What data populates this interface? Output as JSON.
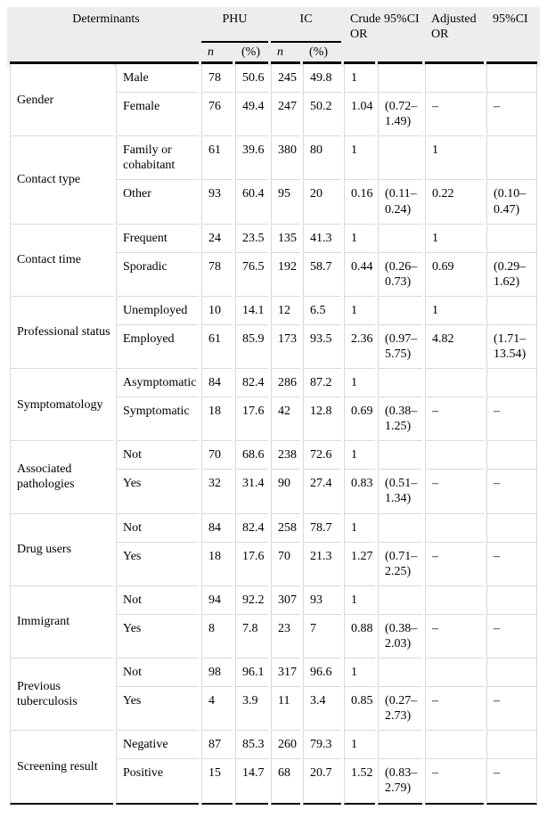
{
  "colors": {
    "header_bg": "#ededed",
    "grid_line": "#d9d9d9",
    "rule_line": "#000000"
  },
  "table": {
    "header": {
      "determinants": "Determinants",
      "phu": "PHU",
      "ic": "IC",
      "crude_or": "Crude OR",
      "ci_crude": "95%CI",
      "adjusted_or": "Adjusted OR",
      "ci_adjusted": "95%CI",
      "n_phu": "n",
      "pct_phu": "(%)",
      "n_ic": "n",
      "pct_ic": "(%)"
    },
    "groups": [
      {
        "name": "Gender",
        "rows": [
          {
            "category": "Male",
            "phu_n": "78",
            "phu_pct": "50.6",
            "ic_n": "245",
            "ic_pct": "49.8",
            "crude_or": "1",
            "crude_ci": "",
            "adj_or": "",
            "adj_ci": ""
          },
          {
            "category": "Female",
            "phu_n": "76",
            "phu_pct": "49.4",
            "ic_n": "247",
            "ic_pct": "50.2",
            "crude_or": "1.04",
            "crude_ci": "(0.72–1.49)",
            "adj_or": "–",
            "adj_ci": "–"
          }
        ]
      },
      {
        "name": "Contact type",
        "rows": [
          {
            "category": "Family or cohabitant",
            "phu_n": "61",
            "phu_pct": "39.6",
            "ic_n": "380",
            "ic_pct": "80",
            "crude_or": "1",
            "crude_ci": "",
            "adj_or": "1",
            "adj_ci": ""
          },
          {
            "category": "Other",
            "phu_n": "93",
            "phu_pct": "60.4",
            "ic_n": "95",
            "ic_pct": "20",
            "crude_or": "0.16",
            "crude_ci": "(0.11–0.24)",
            "adj_or": "0.22",
            "adj_ci": "(0.10–0.47)"
          }
        ]
      },
      {
        "name": "Contact time",
        "rows": [
          {
            "category": "Frequent",
            "phu_n": "24",
            "phu_pct": "23.5",
            "ic_n": "135",
            "ic_pct": "41.3",
            "crude_or": "1",
            "crude_ci": "",
            "adj_or": "1",
            "adj_ci": ""
          },
          {
            "category": "Sporadic",
            "phu_n": "78",
            "phu_pct": "76.5",
            "ic_n": "192",
            "ic_pct": "58.7",
            "crude_or": "0.44",
            "crude_ci": "(0.26–0.73)",
            "adj_or": "0.69",
            "adj_ci": "(0.29–1.62)"
          }
        ]
      },
      {
        "name": "Professional status",
        "rows": [
          {
            "category": "Unemployed",
            "phu_n": "10",
            "phu_pct": "14.1",
            "ic_n": "12",
            "ic_pct": "6.5",
            "crude_or": "1",
            "crude_ci": "",
            "adj_or": "1",
            "adj_ci": ""
          },
          {
            "category": "Employed",
            "phu_n": "61",
            "phu_pct": "85.9",
            "ic_n": "173",
            "ic_pct": "93.5",
            "crude_or": "2.36",
            "crude_ci": "(0.97–5.75)",
            "adj_or": "4.82",
            "adj_ci": "(1.71–13.54)"
          }
        ]
      },
      {
        "name": "Symptomatology",
        "rows": [
          {
            "category": "Asymptomatic",
            "phu_n": "84",
            "phu_pct": "82.4",
            "ic_n": "286",
            "ic_pct": "87.2",
            "crude_or": "1",
            "crude_ci": "",
            "adj_or": "",
            "adj_ci": ""
          },
          {
            "category": "Symptomatic",
            "phu_n": "18",
            "phu_pct": "17.6",
            "ic_n": "42",
            "ic_pct": "12.8",
            "crude_or": "0.69",
            "crude_ci": "(0.38–1.25)",
            "adj_or": "–",
            "adj_ci": "–"
          }
        ]
      },
      {
        "name": "Associated pathologies",
        "rows": [
          {
            "category": "Not",
            "phu_n": "70",
            "phu_pct": "68.6",
            "ic_n": "238",
            "ic_pct": "72.6",
            "crude_or": "1",
            "crude_ci": "",
            "adj_or": "",
            "adj_ci": ""
          },
          {
            "category": "Yes",
            "phu_n": "32",
            "phu_pct": "31.4",
            "ic_n": "90",
            "ic_pct": "27.4",
            "crude_or": "0.83",
            "crude_ci": "(0.51–1.34)",
            "adj_or": "–",
            "adj_ci": "–"
          }
        ]
      },
      {
        "name": "Drug users",
        "rows": [
          {
            "category": "Not",
            "phu_n": "84",
            "phu_pct": "82.4",
            "ic_n": "258",
            "ic_pct": "78.7",
            "crude_or": "1",
            "crude_ci": "",
            "adj_or": "",
            "adj_ci": ""
          },
          {
            "category": "Yes",
            "phu_n": "18",
            "phu_pct": "17.6",
            "ic_n": "70",
            "ic_pct": "21.3",
            "crude_or": "1.27",
            "crude_ci": "(0.71–2.25)",
            "adj_or": "–",
            "adj_ci": "–"
          }
        ]
      },
      {
        "name": "Immigrant",
        "rows": [
          {
            "category": "Not",
            "phu_n": "94",
            "phu_pct": "92.2",
            "ic_n": "307",
            "ic_pct": "93",
            "crude_or": "1",
            "crude_ci": "",
            "adj_or": "",
            "adj_ci": ""
          },
          {
            "category": "Yes",
            "phu_n": "8",
            "phu_pct": "7.8",
            "ic_n": "23",
            "ic_pct": "7",
            "crude_or": "0.88",
            "crude_ci": "(0.38–2.03)",
            "adj_or": "–",
            "adj_ci": "–"
          }
        ]
      },
      {
        "name": "Previous tuberculosis",
        "rows": [
          {
            "category": "Not",
            "phu_n": "98",
            "phu_pct": "96.1",
            "ic_n": "317",
            "ic_pct": "96.6",
            "crude_or": "1",
            "crude_ci": "",
            "adj_or": "",
            "adj_ci": ""
          },
          {
            "category": "Yes",
            "phu_n": "4",
            "phu_pct": "3.9",
            "ic_n": "11",
            "ic_pct": "3.4",
            "crude_or": "0.85",
            "crude_ci": "(0.27–2.73)",
            "adj_or": "–",
            "adj_ci": "–"
          }
        ]
      },
      {
        "name": "Screening result",
        "rows": [
          {
            "category": "Negative",
            "phu_n": "87",
            "phu_pct": "85.3",
            "ic_n": "260",
            "ic_pct": "79.3",
            "crude_or": "1",
            "crude_ci": "",
            "adj_or": "",
            "adj_ci": ""
          },
          {
            "category": "Positive",
            "phu_n": "15",
            "phu_pct": "14.7",
            "ic_n": "68",
            "ic_pct": "20.7",
            "crude_or": "1.52",
            "crude_ci": "(0.83–2.79)",
            "adj_or": "–",
            "adj_ci": "–"
          }
        ]
      }
    ]
  }
}
